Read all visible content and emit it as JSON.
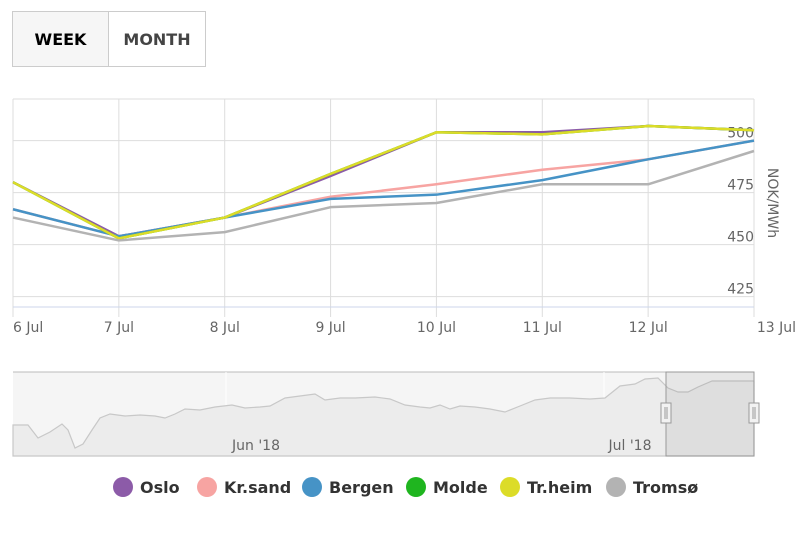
{
  "range_selector": {
    "week_label": "WEEK",
    "month_label": "MONTH",
    "selected": "WEEK"
  },
  "navigator": {
    "labels": [
      "Jun '18",
      "Jul '18"
    ]
  },
  "chart_data": {
    "type": "line",
    "title": "",
    "xlabel": "",
    "ylabel": "NOK/MWh",
    "x": [
      "6 Jul",
      "7 Jul",
      "8 Jul",
      "9 Jul",
      "10 Jul",
      "11 Jul",
      "12 Jul",
      "13 Jul"
    ],
    "ylim": [
      420,
      520
    ],
    "yticks": [
      425,
      450,
      475,
      500
    ],
    "grid": true,
    "legend_position": "bottom",
    "series": [
      {
        "name": "Oslo",
        "color": "#8c5ba8",
        "values": [
          480,
          454,
          463,
          483,
          504,
          504,
          507,
          505
        ]
      },
      {
        "name": "Kr.sand",
        "color": "#f7a4a2",
        "values": [
          467,
          454,
          463,
          473,
          479,
          486,
          491,
          500
        ]
      },
      {
        "name": "Bergen",
        "color": "#4693c6",
        "values": [
          467,
          454,
          463,
          472,
          474,
          481,
          491,
          500
        ]
      },
      {
        "name": "Molde",
        "color": "#1fb51f",
        "values": [
          480,
          453,
          463,
          484,
          504,
          503,
          507,
          505
        ]
      },
      {
        "name": "Tr.heim",
        "color": "#dcdc28",
        "values": [
          480,
          453,
          463,
          484,
          504,
          503,
          507,
          505
        ]
      },
      {
        "name": "Tromsø",
        "color": "#b3b3b3",
        "values": [
          463,
          452,
          456,
          468,
          470,
          479,
          479,
          495
        ]
      }
    ]
  }
}
